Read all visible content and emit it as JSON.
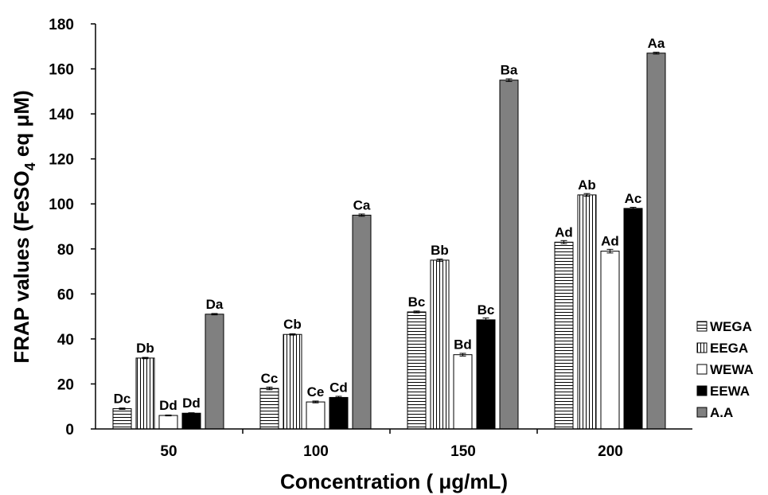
{
  "chart_data": {
    "type": "bar",
    "title": "",
    "xlabel": "Concentration ( μg/mL)",
    "ylabel": {
      "prefix": "FRAP values (FeSO",
      "subscript": "4",
      "suffix": " eq μM)"
    },
    "categories": [
      "50",
      "100",
      "150",
      "200"
    ],
    "ylim": [
      0,
      180
    ],
    "yticks": [
      0,
      20,
      40,
      60,
      80,
      100,
      120,
      140,
      160,
      180
    ],
    "legend_position": "right",
    "grid": false,
    "series": [
      {
        "name": "WEGA",
        "pattern": "horizontal-lines",
        "values": [
          9,
          18,
          52,
          83
        ],
        "errors": [
          0.3,
          0.6,
          0.4,
          0.7
        ],
        "labels": [
          "Dc",
          "Cc",
          "Bc",
          "Ad"
        ]
      },
      {
        "name": "EEGA",
        "pattern": "vertical-lines",
        "values": [
          31.5,
          42,
          75,
          104
        ],
        "errors": [
          0.3,
          0.3,
          0.5,
          0.6
        ],
        "labels": [
          "Db",
          "Cb",
          "Bb",
          "Ab"
        ]
      },
      {
        "name": "WEWA",
        "pattern": "white",
        "values": [
          6,
          12,
          33,
          79
        ],
        "errors": [
          0.2,
          0.4,
          0.6,
          0.8
        ],
        "labels": [
          "Dd",
          "Ce",
          "Bd",
          "Ad"
        ]
      },
      {
        "name": "EEWA",
        "pattern": "black",
        "values": [
          7,
          14,
          48.5,
          98
        ],
        "errors": [
          0.2,
          0.5,
          0.8,
          0.5
        ],
        "labels": [
          "Dd",
          "Cd",
          "Bc",
          "Ac"
        ]
      },
      {
        "name": "A.A",
        "pattern": "gray",
        "color": "#808080",
        "values": [
          51,
          95,
          155,
          167
        ],
        "errors": [
          0.3,
          0.5,
          0.6,
          0.4
        ],
        "labels": [
          "Da",
          "Ca",
          "Ba",
          "Aa"
        ]
      }
    ]
  }
}
